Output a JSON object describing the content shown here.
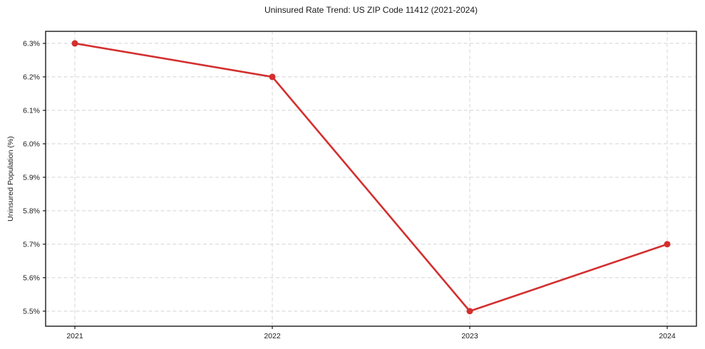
{
  "chart_data": {
    "type": "line",
    "title": "Uninsured Rate Trend: US ZIP Code 11412 (2021-2024)",
    "xlabel": "",
    "ylabel": "Uninsured Population (%)",
    "categories": [
      "2021",
      "2022",
      "2023",
      "2024"
    ],
    "values": [
      6.3,
      6.2,
      5.5,
      5.7
    ],
    "y_ticks": [
      5.5,
      5.6,
      5.7,
      5.8,
      5.9,
      6.0,
      6.1,
      6.2,
      6.3
    ],
    "y_tick_labels": [
      "5.5%",
      "5.6%",
      "5.7%",
      "5.8%",
      "5.9%",
      "6.0%",
      "6.1%",
      "6.2%",
      "6.3%"
    ],
    "ylim": [
      5.455,
      6.336
    ],
    "grid": true,
    "grid_style": "dashed",
    "legend": false,
    "line_color": "#d32f2f",
    "grid_color": "#d4d4d4",
    "axis_color": "#1a1a1a",
    "marker": "circle"
  }
}
